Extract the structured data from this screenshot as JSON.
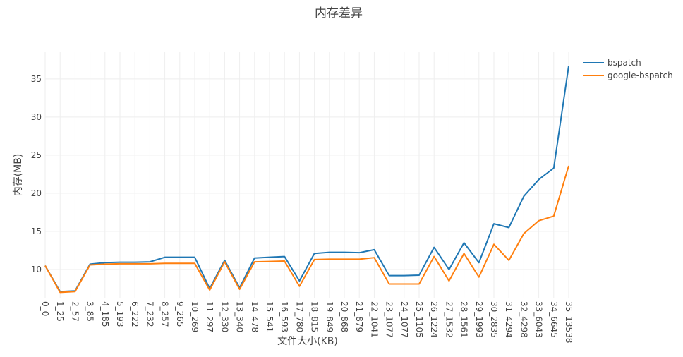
{
  "chart_data": {
    "type": "line",
    "title": "内存差异",
    "xlabel": "文件大小(KB)",
    "ylabel": "内存(MB)",
    "ylim": [
      6.2,
      38.5
    ],
    "yticks": [
      10,
      15,
      20,
      25,
      30,
      35
    ],
    "grid": true,
    "legend_position": "top-right",
    "categories": [
      "0_0",
      "1_25",
      "2_57",
      "3_85",
      "4_185",
      "5_193",
      "6_222",
      "7_232",
      "8_257",
      "9_265",
      "10_269",
      "11_297",
      "12_330",
      "13_340",
      "14_478",
      "15_541",
      "16_593",
      "17_780",
      "18_815",
      "19_849",
      "20_868",
      "21_879",
      "22_1041",
      "23_1077",
      "24_1077",
      "25_1105",
      "26_1224",
      "27_1532",
      "28_1561",
      "29_1993",
      "30_2835",
      "31_4294",
      "32_4298",
      "33_6043",
      "34_6645",
      "35_13538"
    ],
    "series": [
      {
        "name": "bspatch",
        "color": "#1f77b4",
        "values": [
          10.5,
          7.1,
          7.2,
          10.7,
          10.9,
          10.95,
          10.95,
          11.0,
          11.6,
          11.6,
          11.6,
          7.5,
          11.2,
          7.6,
          11.5,
          11.6,
          11.7,
          8.5,
          12.1,
          12.25,
          12.25,
          12.2,
          12.6,
          9.2,
          9.2,
          9.25,
          12.9,
          10.0,
          13.5,
          10.9,
          16.0,
          15.5,
          19.6,
          21.8,
          23.3,
          36.7
        ]
      },
      {
        "name": "google-bspatch",
        "color": "#ff7f0e",
        "values": [
          10.5,
          7.0,
          7.1,
          10.6,
          10.7,
          10.75,
          10.75,
          10.75,
          10.8,
          10.8,
          10.8,
          7.3,
          11.0,
          7.4,
          11.0,
          11.05,
          11.1,
          7.8,
          11.3,
          11.35,
          11.35,
          11.35,
          11.55,
          8.1,
          8.1,
          8.1,
          11.7,
          8.5,
          12.1,
          9.0,
          13.3,
          11.2,
          14.7,
          16.4,
          17.0,
          23.6
        ]
      }
    ]
  }
}
